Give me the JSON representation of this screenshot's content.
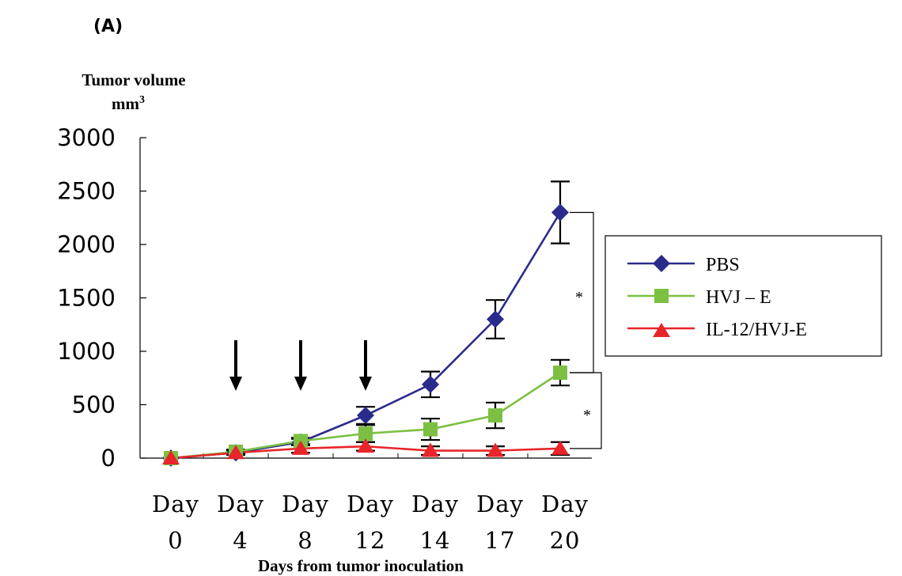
{
  "panel_label": "(A)",
  "chart_data": {
    "type": "line",
    "ylabel_line1": "Tumor volume",
    "ylabel_line2": "mm",
    "ylabel_superscript": "3",
    "xlabel": "Days from tumor inoculation",
    "categories": [
      [
        "Day",
        "0"
      ],
      [
        "Day",
        "4"
      ],
      [
        "Day",
        "8"
      ],
      [
        "Day",
        "12"
      ],
      [
        "Day",
        "14"
      ],
      [
        "Day",
        "17"
      ],
      [
        "Day",
        "20"
      ]
    ],
    "ylim": [
      0,
      3000
    ],
    "yticks": [
      "0",
      "500",
      "1000",
      "1500",
      "2000",
      "2500",
      "3000"
    ],
    "ytick_values": [
      0,
      500,
      1000,
      1500,
      2000,
      2500,
      3000
    ],
    "series": [
      {
        "name": "PBS",
        "color": "#2b2b8c",
        "marker": "diamond",
        "values": [
          0,
          50,
          150,
          400,
          690,
          1300,
          2300
        ],
        "errors": [
          0,
          20,
          30,
          80,
          120,
          180,
          290
        ]
      },
      {
        "name": "HVJ – E",
        "color": "#7cc043",
        "marker": "square",
        "values": [
          0,
          60,
          160,
          230,
          270,
          400,
          800
        ],
        "errors": [
          0,
          20,
          30,
          80,
          100,
          120,
          120
        ]
      },
      {
        "name": "IL-12/HVJ-E",
        "color": "#e8252a",
        "marker": "triangle",
        "values": [
          0,
          50,
          90,
          110,
          70,
          70,
          90
        ],
        "errors": [
          0,
          20,
          40,
          40,
          40,
          40,
          60
        ]
      }
    ],
    "arrows_at": [
      "4",
      "8",
      "12"
    ],
    "significance": [
      {
        "label": "*",
        "from_series": "PBS",
        "to_series": "HVJ – E",
        "at": "20"
      },
      {
        "label": "*",
        "from_series": "HVJ – E",
        "to_series": "IL-12/HVJ-E",
        "at": "20"
      }
    ],
    "legend_position": "right"
  }
}
